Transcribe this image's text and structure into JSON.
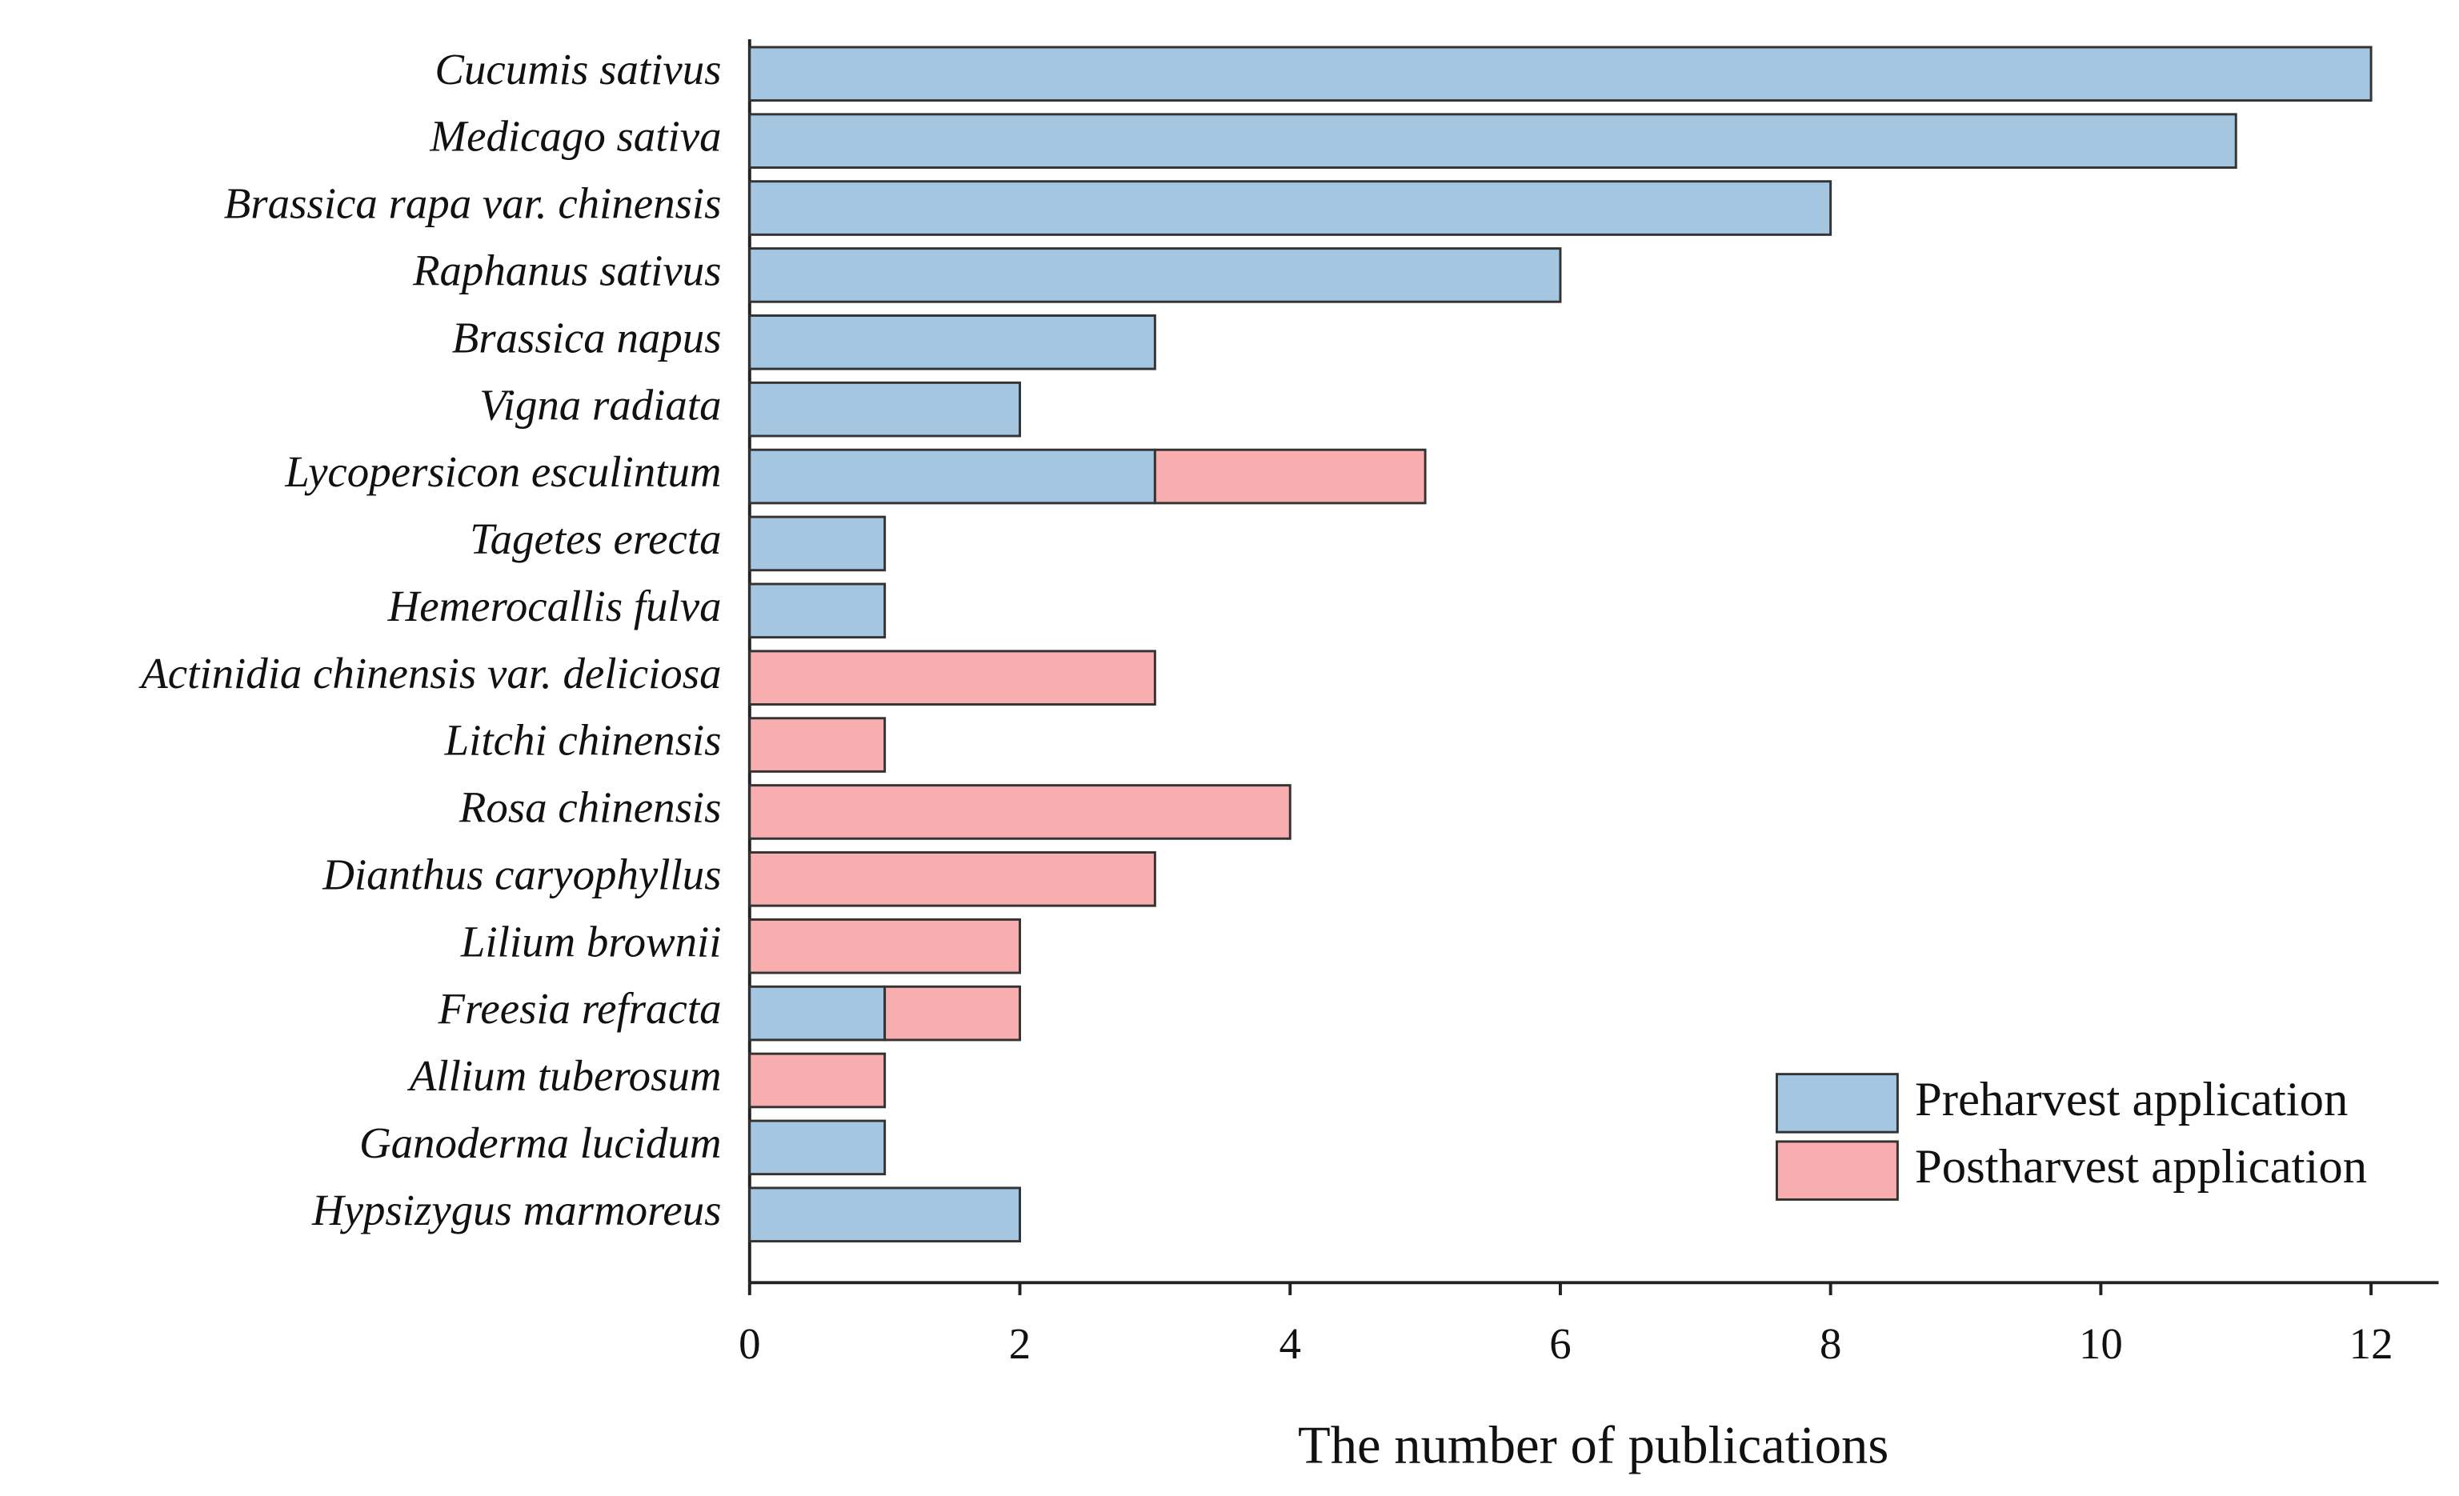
{
  "chart_data": {
    "type": "bar",
    "orientation": "horizontal",
    "stacked": true,
    "x_label": "The number of publications",
    "categories": [
      "Cucumis sativus",
      "Medicago sativa",
      "Brassica rapa var. chinensis",
      "Raphanus sativus",
      "Brassica napus",
      "Vigna radiata",
      "Lycopersicon esculintum",
      "Tagetes erecta",
      "Hemerocallis fulva",
      "Actinidia chinensis var. deliciosa",
      "Litchi chinensis",
      "Rosa chinensis",
      "Dianthus caryophyllus",
      "Lilium brownii",
      "Freesia refracta",
      "Allium tuberosum",
      "Ganoderma lucidum",
      "Hypsizygus marmoreus"
    ],
    "series": [
      {
        "name": "Preharvest application",
        "color": "#a5c6e1",
        "values": [
          12,
          11,
          8,
          6,
          3,
          2,
          3,
          1,
          1,
          0,
          0,
          0,
          0,
          0,
          1,
          0,
          1,
          2
        ]
      },
      {
        "name": "Postharvest application",
        "color": "#f8aeae",
        "values": [
          0,
          0,
          0,
          0,
          0,
          0,
          2,
          0,
          0,
          3,
          1,
          4,
          3,
          2,
          1,
          1,
          0,
          0
        ]
      }
    ],
    "xlim": [
      0,
      12.5
    ],
    "xticks": [
      0,
      2,
      4,
      6,
      8,
      10,
      12
    ],
    "grid": false,
    "legend": "lower right"
  }
}
